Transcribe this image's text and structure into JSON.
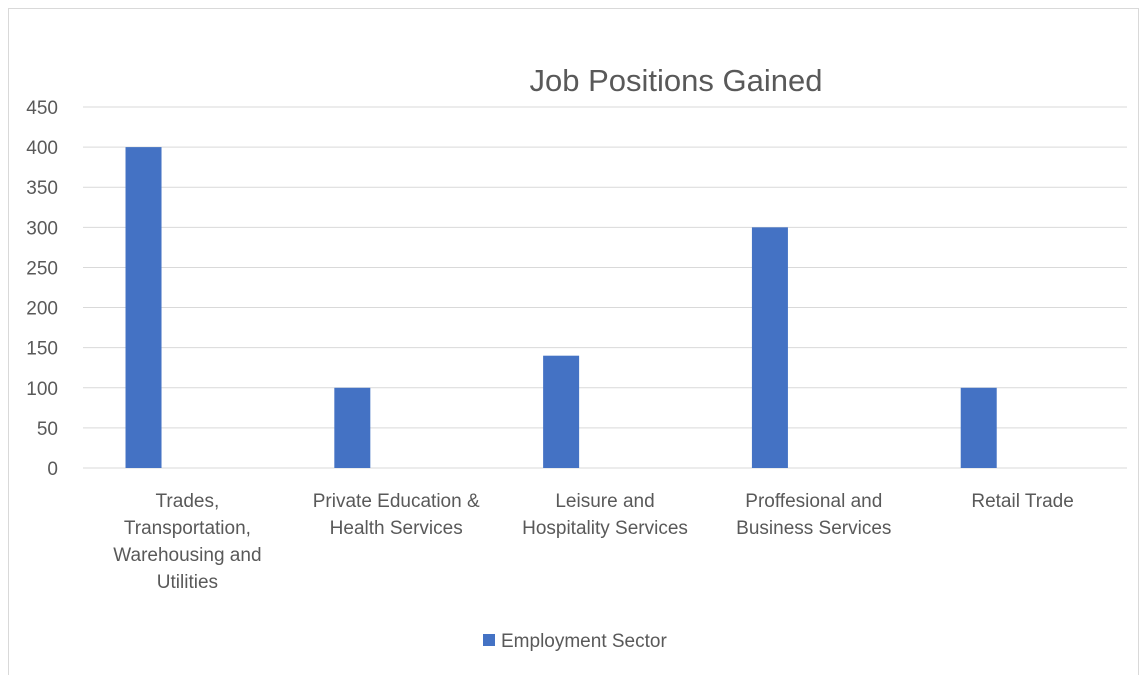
{
  "chart_data": {
    "type": "bar",
    "title": "Job Positions Gained",
    "xlabel": "",
    "ylabel": "",
    "categories": [
      [
        "Trades,",
        "Transportation,",
        "Warehousing and",
        "Utilities"
      ],
      [
        "Private Education &",
        "Health Services"
      ],
      [
        "Leisure and",
        "Hospitality Services"
      ],
      [
        "Proffesional and",
        "Business Services"
      ],
      [
        "Retail Trade"
      ]
    ],
    "series": [
      {
        "name": "Employment Sector",
        "values": [
          400,
          100,
          140,
          300,
          100
        ],
        "color": "#4472C4"
      }
    ],
    "ylim": [
      0,
      450
    ],
    "yticks": [
      0,
      50,
      100,
      150,
      200,
      250,
      300,
      350,
      400,
      450
    ],
    "grid": true,
    "legend": "bottom"
  }
}
